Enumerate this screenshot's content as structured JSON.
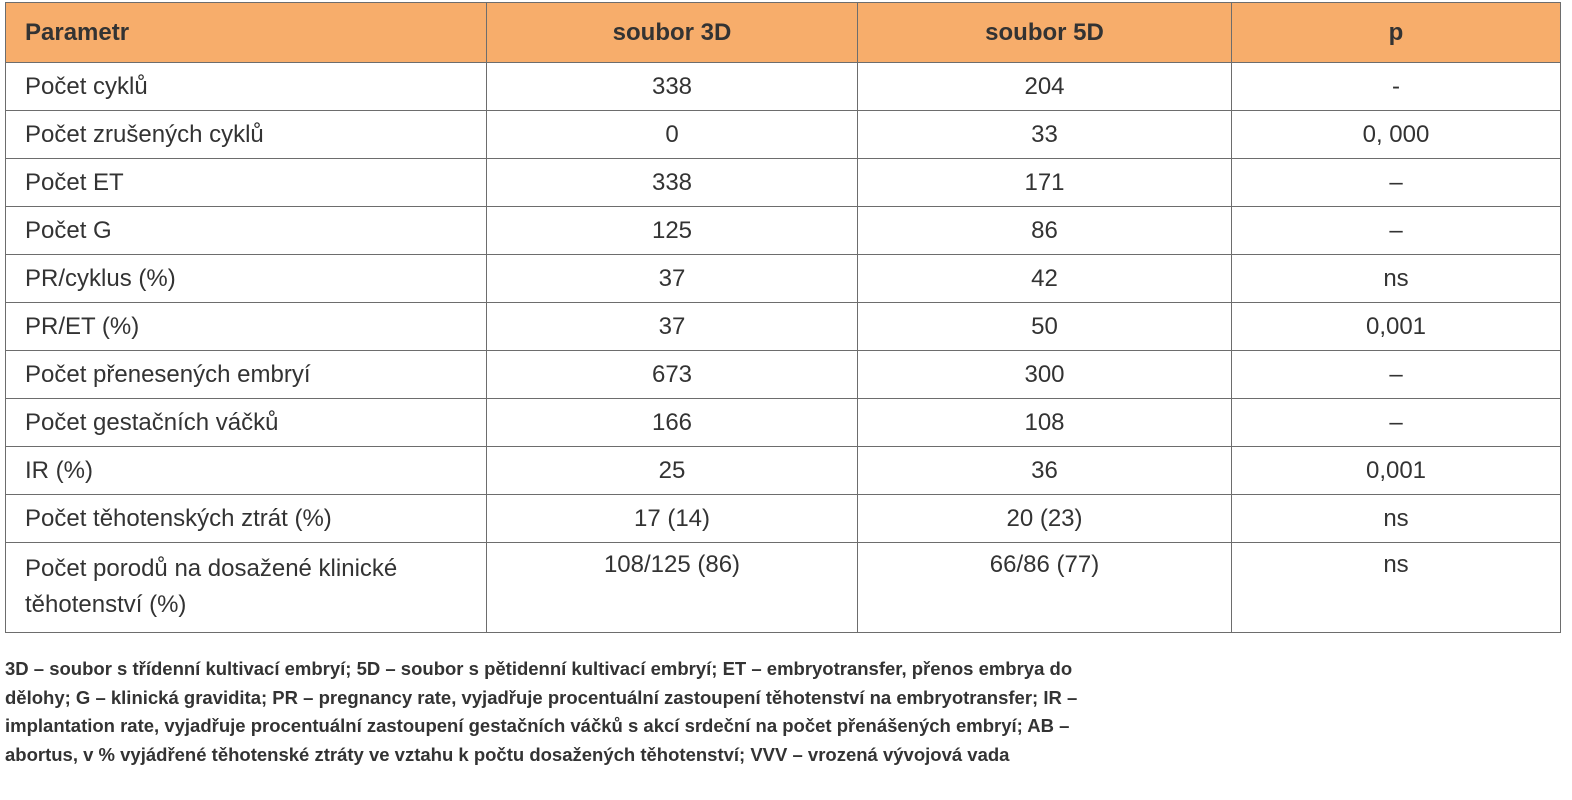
{
  "table": {
    "headers": [
      "Parametr",
      "soubor 3D",
      "soubor 5D",
      "p"
    ],
    "rows": [
      [
        "Počet cyklů",
        "338",
        "204",
        "-"
      ],
      [
        "Počet zrušených cyklů",
        "0",
        "33",
        "0, 000"
      ],
      [
        "Počet ET",
        "338",
        "171",
        "–"
      ],
      [
        "Počet G",
        "125",
        "86",
        "–"
      ],
      [
        "PR/cyklus (%)",
        "37",
        "42",
        "ns"
      ],
      [
        "PR/ET (%)",
        "37",
        "50",
        "0,001"
      ],
      [
        "Počet přenesených embryí",
        "673",
        "300",
        "–"
      ],
      [
        "Počet gestačních váčků",
        "166",
        "108",
        "–"
      ],
      [
        "IR (%)",
        "25",
        "36",
        "0,001"
      ],
      [
        "Počet těhotenských ztrát (%)",
        "17 (14)",
        "20 (23)",
        "ns"
      ],
      [
        "Počet porodů na dosažené klinické těhotenství (%)",
        "108/125 (86)",
        "66/86 (77)",
        "ns"
      ]
    ]
  },
  "footnote": "3D – soubor s třídenní kultivací embryí; 5D – soubor s pětidenní kultivací embryí; ET – embryotransfer, přenos embrya do dělohy; G – klinická gravidita; PR – pregnancy rate, vyjadřuje procentuální zastoupení těhotenství na embryotransfer; IR – implantation rate, vyjadřuje procentuální zastoupení gestačních váčků s akcí srdeční na počet přenášených embryí; AB – abortus, v % vyjádřené těhotenské ztráty ve vztahu k počtu dosažených těhotenství; VVV – vrozená vývojová vada",
  "colors": {
    "header_bg": "#f7ad6b",
    "border": "#6d6d6d",
    "text": "#333333"
  }
}
